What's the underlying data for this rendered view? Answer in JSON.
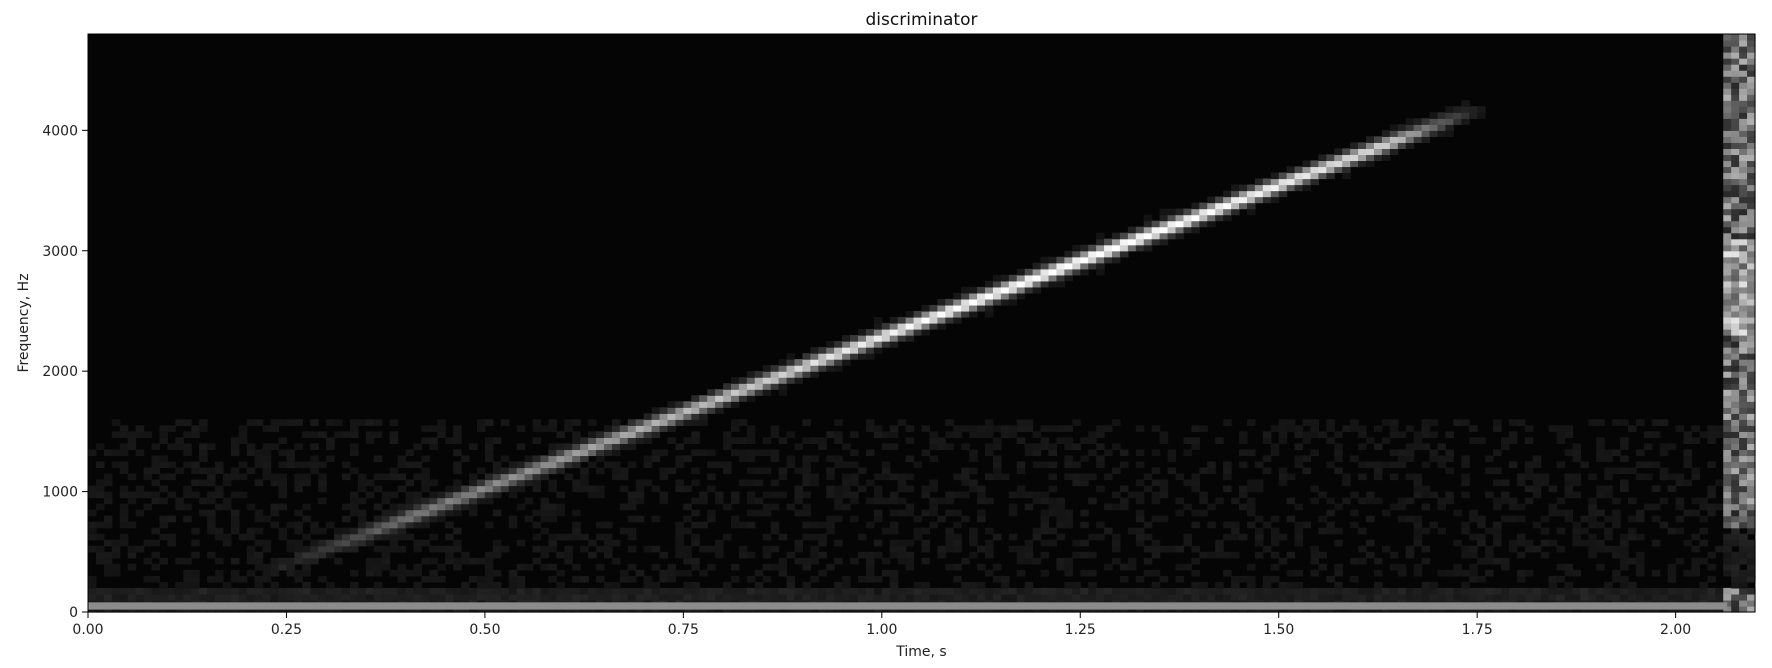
{
  "chart_data": {
    "type": "heatmap",
    "subtype": "spectrogram",
    "title": "discriminator",
    "xlabel": "Time, s",
    "ylabel": "Frequency, Hz",
    "xlim": [
      0,
      2.1
    ],
    "ylim": [
      0,
      4800
    ],
    "x_ticks": [
      0.0,
      0.25,
      0.5,
      0.75,
      1.0,
      1.25,
      1.5,
      1.75,
      2.0
    ],
    "x_tick_labels": [
      "0.00",
      "0.25",
      "0.50",
      "0.75",
      "1.00",
      "1.25",
      "1.50",
      "1.75",
      "2.00"
    ],
    "y_ticks": [
      0,
      1000,
      2000,
      3000,
      4000
    ],
    "y_tick_labels": [
      "0",
      "1000",
      "2000",
      "3000",
      "4000"
    ],
    "colormap": "gray",
    "features": {
      "chirp": {
        "description": "linear frequency sweep",
        "start": {
          "time": 0.21,
          "freq": 300
        },
        "end": {
          "time": 1.76,
          "freq": 4200
        },
        "peak_time": 1.25
      },
      "low_band": {
        "freq_range": [
          20,
          80
        ],
        "intensity": 0.55
      },
      "right_band": {
        "time_range": [
          2.065,
          2.1
        ],
        "freq_range": [
          700,
          4800
        ]
      }
    }
  }
}
